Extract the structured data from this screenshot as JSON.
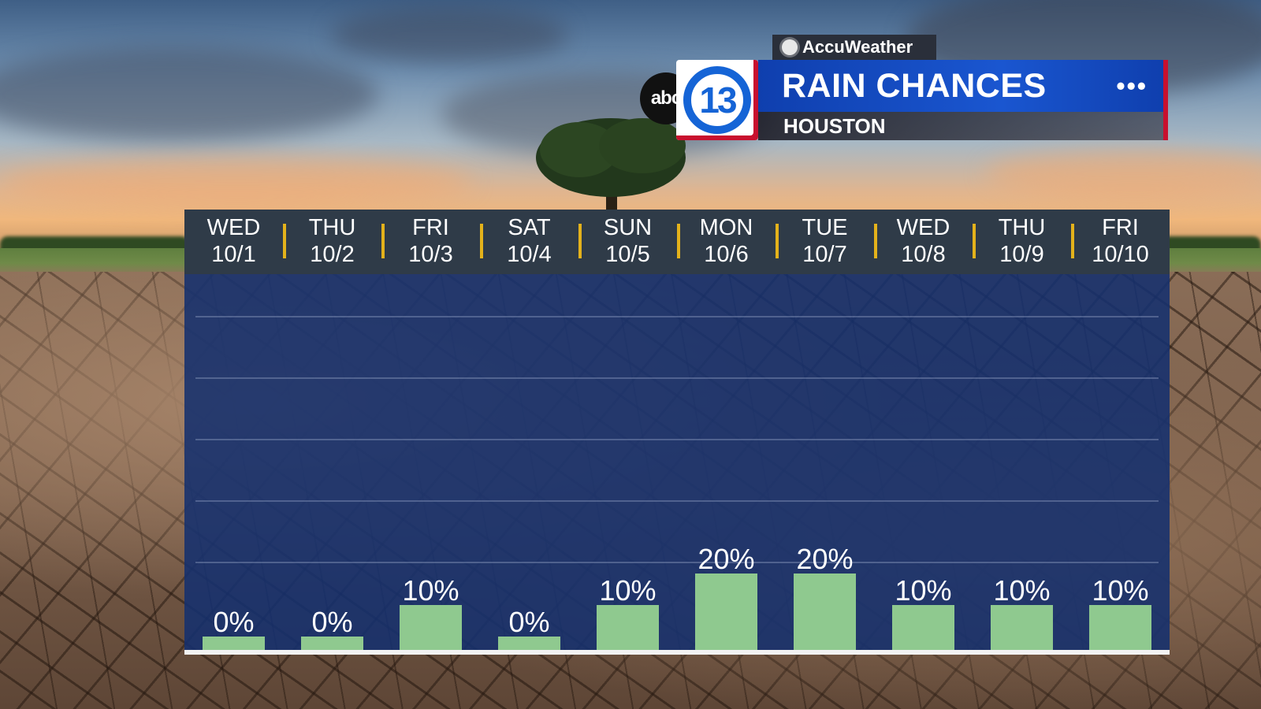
{
  "header": {
    "brand": "AccuWeather",
    "station_abc": "abc",
    "station_number": "13",
    "title": "RAIN CHANCES",
    "location": "HOUSTON",
    "more": "•••"
  },
  "chart_data": {
    "type": "bar",
    "title": "RAIN CHANCES",
    "categories": [
      "WED 10/1",
      "THU 10/2",
      "FRI 10/3",
      "SAT 10/4",
      "SUN 10/5",
      "MON 10/6",
      "TUE 10/7",
      "WED 10/8",
      "THU 10/9",
      "FRI 10/10"
    ],
    "days": [
      {
        "day": "WED",
        "date": "10/1"
      },
      {
        "day": "THU",
        "date": "10/2"
      },
      {
        "day": "FRI",
        "date": "10/3"
      },
      {
        "day": "SAT",
        "date": "10/4"
      },
      {
        "day": "SUN",
        "date": "10/5"
      },
      {
        "day": "MON",
        "date": "10/6"
      },
      {
        "day": "TUE",
        "date": "10/7"
      },
      {
        "day": "WED",
        "date": "10/8"
      },
      {
        "day": "THU",
        "date": "10/9"
      },
      {
        "day": "FRI",
        "date": "10/10"
      }
    ],
    "values": [
      0,
      0,
      10,
      0,
      10,
      20,
      20,
      10,
      10,
      10
    ],
    "labels": [
      "0%",
      "0%",
      "10%",
      "0%",
      "10%",
      "20%",
      "20%",
      "10%",
      "10%",
      "10%"
    ],
    "ylim": [
      0,
      100
    ],
    "grid": true,
    "bar_color": "#8fc98f",
    "plot_color": "#14306e",
    "header_color": "#2f3b48",
    "separator_color": "#e4b21b"
  }
}
